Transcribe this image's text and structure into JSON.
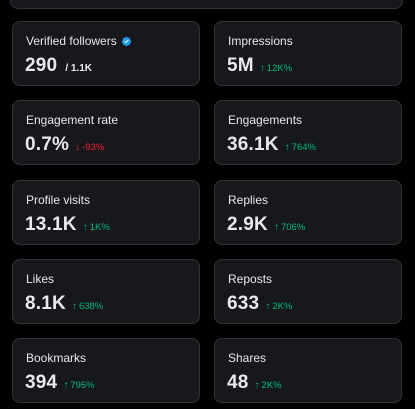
{
  "colors": {
    "background": "#000000",
    "card_background": "#16181c",
    "card_border": "#2f3336",
    "text": "#e7e9ea",
    "positive": "#00ba7c",
    "negative": "#f4212e",
    "verified": "#1d9bf0"
  },
  "cards": [
    {
      "label": "Verified followers",
      "value": "290",
      "sub": "/ 1.1K",
      "verified_icon": "verified-badge-icon"
    },
    {
      "label": "Impressions",
      "value": "5M",
      "change": "12K%",
      "direction": "up"
    },
    {
      "label": "Engagement rate",
      "value": "0.7%",
      "change": "-93%",
      "direction": "down"
    },
    {
      "label": "Engagements",
      "value": "36.1K",
      "change": "764%",
      "direction": "up"
    },
    {
      "label": "Profile visits",
      "value": "13.1K",
      "change": "1K%",
      "direction": "up"
    },
    {
      "label": "Replies",
      "value": "2.9K",
      "change": "706%",
      "direction": "up"
    },
    {
      "label": "Likes",
      "value": "8.1K",
      "change": "638%",
      "direction": "up"
    },
    {
      "label": "Reposts",
      "value": "633",
      "change": "2K%",
      "direction": "up"
    },
    {
      "label": "Bookmarks",
      "value": "394",
      "change": "795%",
      "direction": "up"
    },
    {
      "label": "Shares",
      "value": "48",
      "change": "2K%",
      "direction": "up"
    }
  ]
}
